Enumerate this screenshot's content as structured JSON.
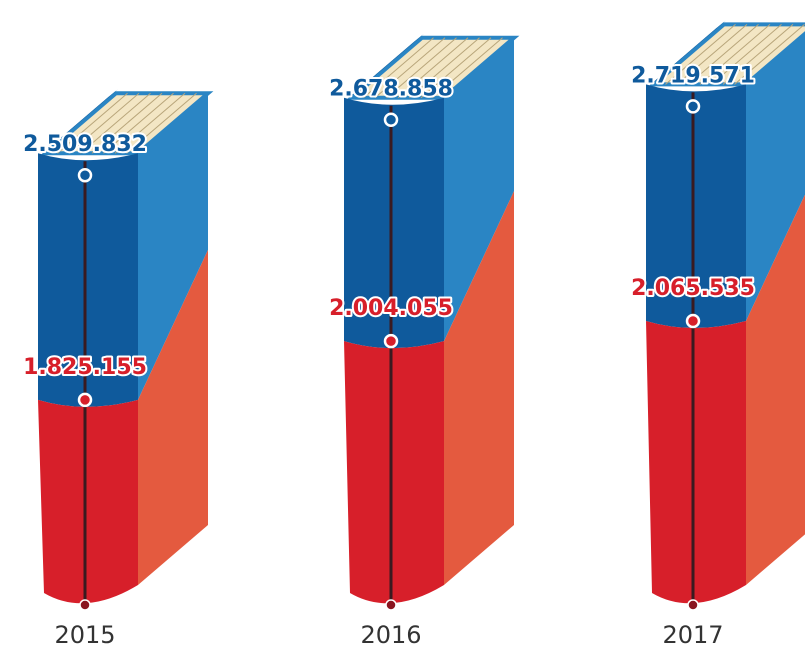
{
  "chart_data": {
    "type": "bar",
    "categories": [
      "2015",
      "2016",
      "2017"
    ],
    "series": [
      {
        "color": "#0f5a9c",
        "values": [
          2509832,
          2678858,
          2719571
        ],
        "value_labels": [
          "2.509.832",
          "2.678.858",
          "2.719.571"
        ]
      },
      {
        "color": "#d71f2a",
        "values": [
          1825155,
          2004055,
          2065535
        ],
        "value_labels": [
          "1.825.155",
          "2.004.055",
          "2.065.535"
        ]
      }
    ],
    "ylim": [
      1200000,
      2800000
    ]
  }
}
